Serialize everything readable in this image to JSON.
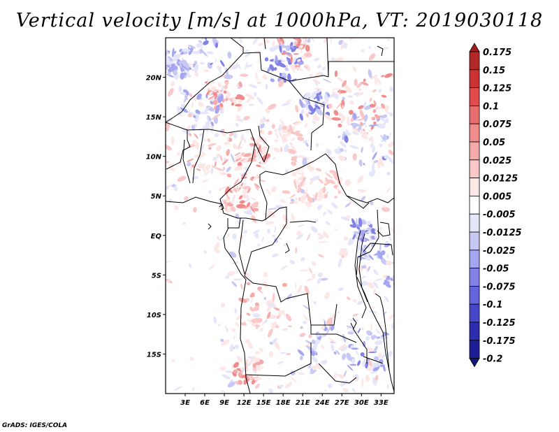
{
  "title": "Vertical velocity [m/s] at 1000hPa, VT: 2019030118",
  "footer": "GrADS: IGES/COLA",
  "map": {
    "lon_range": [
      0,
      35
    ],
    "lat_range": [
      -20,
      25
    ],
    "lat_ticks": [
      {
        "value": 20,
        "label": "20N"
      },
      {
        "value": 15,
        "label": "15N"
      },
      {
        "value": 10,
        "label": "10N"
      },
      {
        "value": 5,
        "label": "5N"
      },
      {
        "value": 0,
        "label": "EQ"
      },
      {
        "value": -5,
        "label": "5S"
      },
      {
        "value": -10,
        "label": "10S"
      },
      {
        "value": -15,
        "label": "15S"
      }
    ],
    "lon_ticks": [
      {
        "value": 3,
        "label": "3E"
      },
      {
        "value": 6,
        "label": "6E"
      },
      {
        "value": 9,
        "label": "9E"
      },
      {
        "value": 12,
        "label": "12E"
      },
      {
        "value": 15,
        "label": "15E"
      },
      {
        "value": 18,
        "label": "18E"
      },
      {
        "value": 21,
        "label": "21E"
      },
      {
        "value": 24,
        "label": "24E"
      },
      {
        "value": 27,
        "label": "27E"
      },
      {
        "value": 30,
        "label": "30E"
      },
      {
        "value": 33,
        "label": "33E"
      }
    ]
  },
  "colorbar": {
    "labels": [
      "0.175",
      "0.15",
      "0.125",
      "0.1",
      "0.075",
      "0.05",
      "0.025",
      "0.0125",
      "0.005",
      "-0.005",
      "-0.0125",
      "-0.025",
      "-0.05",
      "-0.075",
      "-0.1",
      "-0.125",
      "-0.175",
      "-0.2"
    ],
    "colors": [
      "#a01e1e",
      "#b42828",
      "#cd3232",
      "#e14b4b",
      "#e66e6e",
      "#f08c8c",
      "#f5aaaa",
      "#fac8c8",
      "#fde6e6",
      "#ffffff",
      "#e6e6fa",
      "#c8c8f5",
      "#a5a5f0",
      "#8282e6",
      "#6464dc",
      "#4646c8",
      "#2d2daf",
      "#1e1e96",
      "#14147d"
    ]
  }
}
